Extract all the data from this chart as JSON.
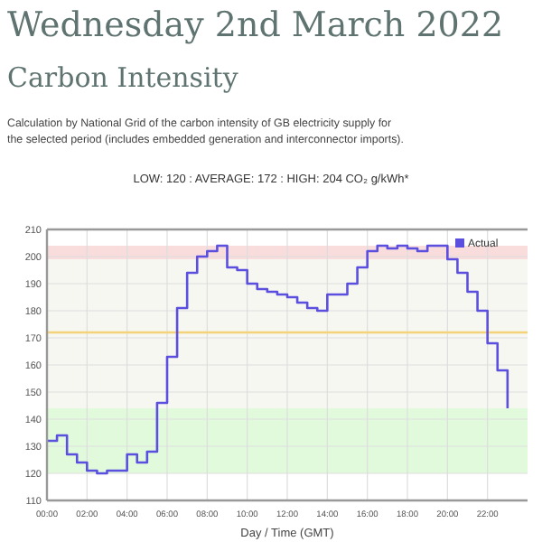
{
  "chart_data": {
    "type": "step",
    "title": "Wednesday 2nd March 2022",
    "subtitle": "Carbon Intensity",
    "annotations": [
      "Calculation by National Grid of the carbon intensity of GB electricity supply for the selected period (includes embedded generation and interconnector imports).",
      "LOW: 120 : AVERAGE: 172 : HIGH: 204 CO₂ g/kWh*"
    ],
    "xlabel": "Day / Time (GMT)",
    "x": [
      0,
      0.5,
      1,
      1.5,
      2,
      2.5,
      3,
      3.5,
      4,
      4.5,
      5,
      5.5,
      6,
      6.5,
      7,
      7.5,
      8,
      8.5,
      9,
      9.5,
      10,
      10.5,
      11,
      11.5,
      12,
      12.5,
      13,
      13.5,
      14,
      14.5,
      15,
      15.5,
      16,
      16.5,
      17,
      17.5,
      18,
      18.5,
      19,
      19.5,
      20,
      20.5,
      21,
      21.5,
      22,
      22.5,
      23
    ],
    "series": [
      {
        "name": "Actual",
        "color": "#5b4fe0",
        "values": [
          132,
          134,
          127,
          124,
          121,
          120,
          121,
          121,
          127,
          124,
          128,
          146,
          163,
          181,
          194,
          200,
          202,
          204,
          196,
          195,
          190,
          188,
          187,
          186,
          185,
          183,
          181,
          180,
          186,
          186,
          190,
          196,
          202,
          204,
          203,
          204,
          203,
          202,
          204,
          204,
          199,
          194,
          187,
          180,
          168,
          158,
          144
        ]
      }
    ],
    "xlim": [
      0,
      24
    ],
    "xticks": [
      {
        "value": 0,
        "label": "00:00"
      },
      {
        "value": 2,
        "label": "02:00"
      },
      {
        "value": 4,
        "label": "04:00"
      },
      {
        "value": 6,
        "label": "06:00"
      },
      {
        "value": 8,
        "label": "08:00"
      },
      {
        "value": 10,
        "label": "10:00"
      },
      {
        "value": 12,
        "label": "12:00"
      },
      {
        "value": 14,
        "label": "14:00"
      },
      {
        "value": 16,
        "label": "16:00"
      },
      {
        "value": 18,
        "label": "18:00"
      },
      {
        "value": 20,
        "label": "20:00"
      },
      {
        "value": 22,
        "label": "22:00"
      }
    ],
    "ylim": [
      110,
      210
    ],
    "yticks": [
      110,
      120,
      130,
      140,
      150,
      160,
      170,
      180,
      190,
      200,
      210
    ],
    "bands": [
      {
        "axis": "y",
        "from": 120,
        "to": 144,
        "color": "#e2fadc"
      },
      {
        "axis": "y",
        "from": 144,
        "to": 199,
        "color": "#f7f7f2"
      },
      {
        "axis": "y",
        "from": 199,
        "to": 204,
        "color": "#f9dcdc"
      }
    ],
    "ref_lines": [
      {
        "axis": "y",
        "value": 172,
        "color": "#f3d27a"
      }
    ],
    "grid": true,
    "legend": "top right",
    "line_style": "solid",
    "marker": "none"
  }
}
